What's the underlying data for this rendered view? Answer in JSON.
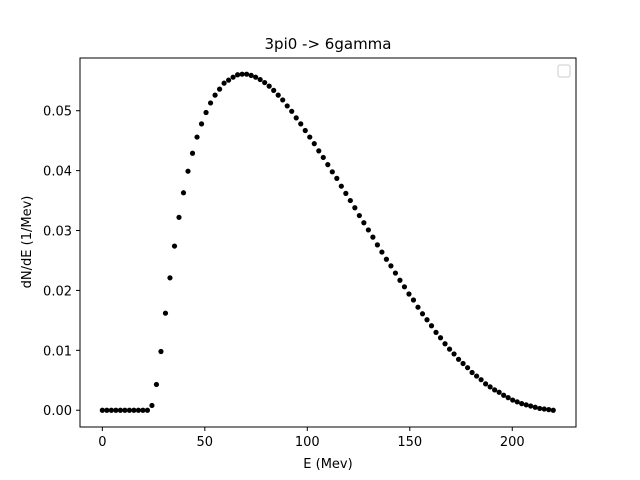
{
  "chart_data": {
    "type": "scatter",
    "title": "3pi0 -> 6gamma",
    "xlabel": "E (Mev)",
    "ylabel": "dN/dE (1/Mev)",
    "xlim": [
      -10.9,
      231.1
    ],
    "ylim": [
      -0.0028,
      0.0588
    ],
    "xticks": [
      0,
      50,
      100,
      150,
      200
    ],
    "xtick_labels": [
      "0",
      "50",
      "100",
      "150",
      "200"
    ],
    "yticks": [
      0.0,
      0.01,
      0.02,
      0.03,
      0.04,
      0.05
    ],
    "ytick_labels": [
      "0.00",
      "0.01",
      "0.02",
      "0.03",
      "0.04",
      "0.05"
    ],
    "grid": false,
    "legend": "top-right, empty",
    "marker_color": "#000000",
    "series": [
      {
        "x": [
          0,
          2.2,
          4.4,
          6.6,
          8.8,
          11,
          13.2,
          15.4,
          17.6,
          19.8,
          22,
          24.2,
          26.4,
          28.6,
          30.8,
          33,
          35.2,
          37.4,
          39.6,
          41.8,
          44,
          46.2,
          48.4,
          50.6,
          52.8,
          55,
          57.2,
          59.4,
          61.6,
          63.8,
          66,
          68.2,
          70.4,
          72.6,
          74.8,
          77,
          79.2,
          81.4,
          83.6,
          85.8,
          88,
          90.2,
          92.4,
          94.6,
          96.8,
          99,
          101.2,
          103.4,
          105.6,
          107.8,
          110,
          112.2,
          114.4,
          116.6,
          118.8,
          121,
          123.2,
          125.4,
          127.6,
          129.8,
          132,
          134.2,
          136.4,
          138.6,
          140.8,
          143,
          145.2,
          147.4,
          149.6,
          151.8,
          154,
          156.2,
          158.4,
          160.6,
          162.8,
          165,
          167.2,
          169.4,
          171.6,
          173.8,
          176,
          178.2,
          180.4,
          182.6,
          184.8,
          187,
          189.2,
          191.4,
          193.6,
          195.8,
          198,
          200.2,
          202.4,
          204.6,
          206.8,
          209,
          211.2,
          213.4,
          215.6,
          217.8,
          220
        ],
        "y": [
          0,
          0,
          0,
          0,
          0,
          0,
          0,
          0,
          0,
          0,
          0,
          0.0008,
          0.0043,
          0.0098,
          0.0162,
          0.0221,
          0.0274,
          0.0322,
          0.0363,
          0.0399,
          0.0429,
          0.0456,
          0.0478,
          0.0497,
          0.0513,
          0.0526,
          0.0536,
          0.0546,
          0.0551,
          0.0556,
          0.056,
          0.0561,
          0.0561,
          0.0559,
          0.0556,
          0.0552,
          0.0547,
          0.0541,
          0.0534,
          0.0526,
          0.0518,
          0.0508,
          0.0499,
          0.0488,
          0.0478,
          0.0467,
          0.0456,
          0.0445,
          0.0433,
          0.0422,
          0.041,
          0.0398,
          0.0387,
          0.0374,
          0.0362,
          0.035,
          0.0338,
          0.0325,
          0.0313,
          0.0301,
          0.0289,
          0.0276,
          0.0264,
          0.0252,
          0.0241,
          0.0229,
          0.0217,
          0.0206,
          0.0194,
          0.0184,
          0.0172,
          0.0161,
          0.0151,
          0.0141,
          0.013,
          0.0121,
          0.0111,
          0.0102,
          0.0094,
          0.0085,
          0.0078,
          0.0071,
          0.0063,
          0.0057,
          0.0051,
          0.0044,
          0.0039,
          0.0034,
          0.003,
          0.0025,
          0.0021,
          0.0017,
          0.0014,
          0.0011,
          0.0009,
          0.0007,
          0.0005,
          0.0003,
          0.0002,
          0.0001,
          0
        ]
      }
    ]
  }
}
